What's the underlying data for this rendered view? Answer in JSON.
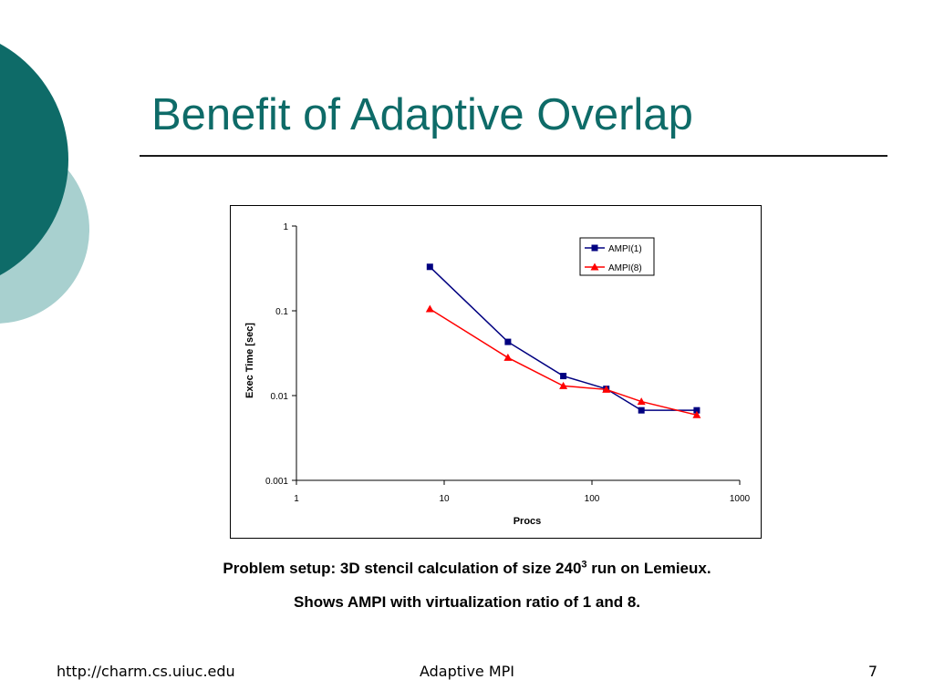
{
  "slide": {
    "title": "Benefit of Adaptive Overlap",
    "caption_line1_before": "Problem setup: 3D stencil calculation of size 240",
    "caption_line1_sup": "3",
    "caption_line1_after": " run on Lemieux.",
    "caption_line2": "Shows AMPI with virtualization ratio of 1 and 8."
  },
  "footer": {
    "left": "http://charm.cs.uiuc.edu",
    "center": "Adaptive MPI",
    "right": "7"
  },
  "colors": {
    "title": "#0e6b68",
    "deco_dark": "#0e6b68",
    "deco_light": "#a8d0cf",
    "series_1": "#000080",
    "series_2": "#ff0000"
  },
  "chart_data": {
    "type": "line",
    "title": "",
    "xlabel": "Procs",
    "ylabel": "Exec Time [sec]",
    "x_scale": "log",
    "y_scale": "log",
    "xlim": [
      1,
      1000
    ],
    "ylim": [
      0.001,
      1
    ],
    "x_ticks": [
      1,
      10,
      100,
      1000
    ],
    "x_tick_labels": [
      "1",
      "10",
      "100",
      "1000"
    ],
    "y_ticks": [
      1,
      0.1,
      0.01,
      0.001
    ],
    "y_tick_labels": [
      "1",
      "0.1",
      "0.01",
      "0.001"
    ],
    "grid": false,
    "legend_position": "top-right",
    "series": [
      {
        "name": "AMPI(1)",
        "marker": "square",
        "color": "#000080",
        "x": [
          8,
          27,
          64,
          125,
          216,
          512
        ],
        "y": [
          0.33,
          0.043,
          0.017,
          0.012,
          0.0067,
          0.0067
        ]
      },
      {
        "name": "AMPI(8)",
        "marker": "triangle",
        "color": "#ff0000",
        "x": [
          8,
          27,
          64,
          125,
          216,
          512
        ],
        "y": [
          0.105,
          0.028,
          0.013,
          0.0118,
          0.0085,
          0.0059
        ]
      }
    ]
  }
}
